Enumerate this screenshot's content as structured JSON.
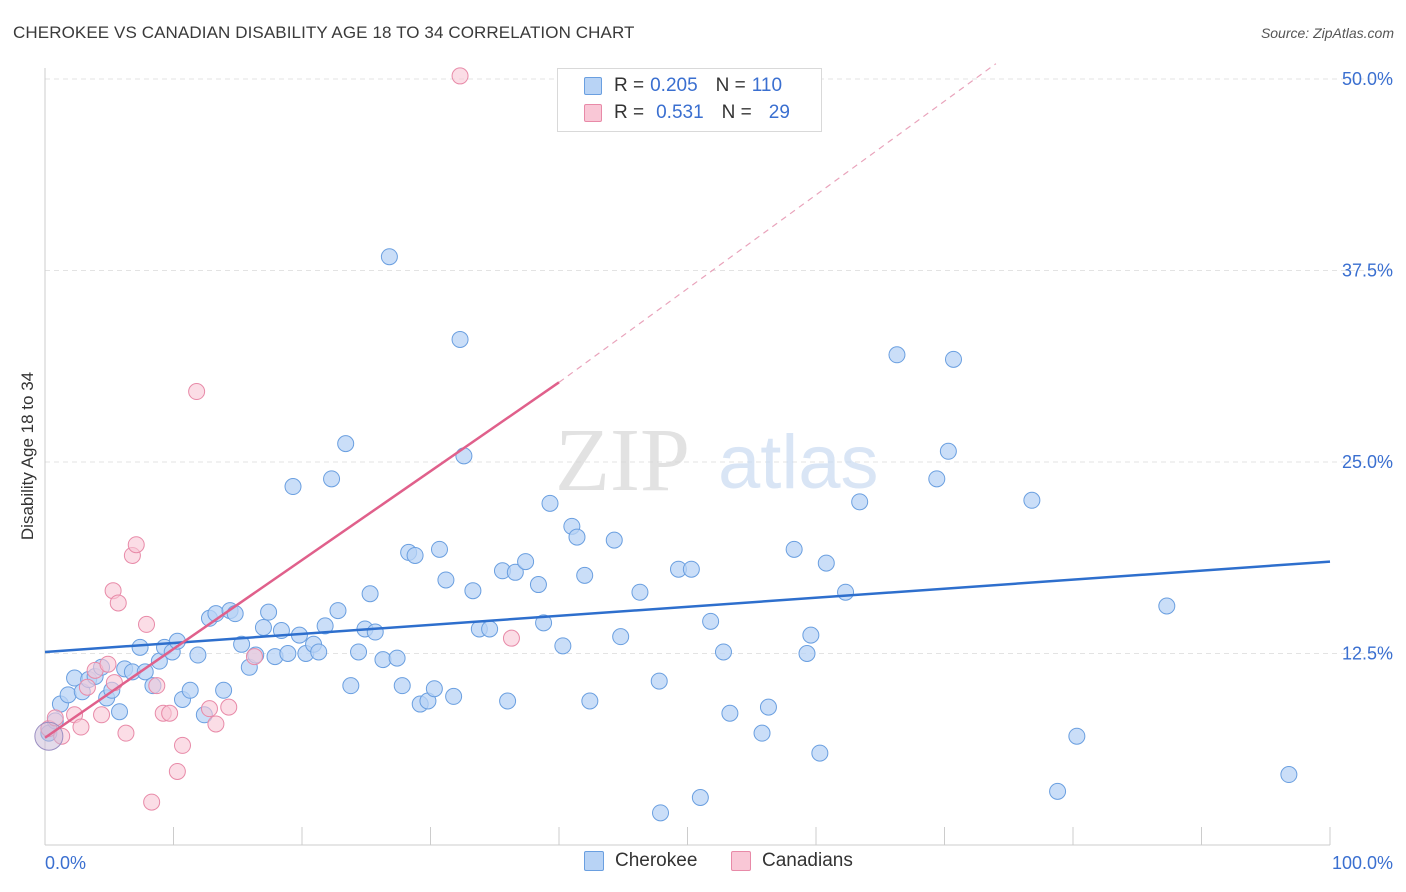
{
  "header": {
    "title": "CHEROKEE VS CANADIAN DISABILITY AGE 18 TO 34 CORRELATION CHART",
    "source": "Source: ZipAtlas.com"
  },
  "legend": {
    "rows": [
      {
        "r_label": "R = ",
        "r_value": "0.205",
        "n_label": "N = ",
        "n_value": "110"
      },
      {
        "r_label": "R = ",
        "r_value": "0.531",
        "n_label": "N = ",
        "n_value": "29"
      }
    ]
  },
  "colors": {
    "cherokee_fill": "#b8d3f5",
    "cherokee_stroke": "#6a9fe0",
    "cherokee_line": "#2e6fcd",
    "canadians_fill": "#f9c7d6",
    "canadians_stroke": "#e88aa8",
    "canadians_line": "#e0608b",
    "axis_text": "#3a6fd0",
    "grid": "#e3e3e3"
  },
  "watermark": {
    "part1": "ZIP",
    "part2": "atlas"
  },
  "chart_data": {
    "type": "scatter",
    "title": "CHEROKEE VS CANADIAN DISABILITY AGE 18 TO 34 CORRELATION CHART",
    "xlabel": "",
    "ylabel": "Disability Age 18 to 34",
    "xlim": [
      0,
      100
    ],
    "ylim": [
      0,
      50
    ],
    "x_tick_labels": [
      {
        "value": 0,
        "label": "0.0%"
      },
      {
        "value": 100,
        "label": "100.0%"
      }
    ],
    "y_tick_labels": [
      {
        "value": 12.5,
        "label": "12.5%"
      },
      {
        "value": 25,
        "label": "25.0%"
      },
      {
        "value": 37.5,
        "label": "37.5%"
      },
      {
        "value": 50,
        "label": "50.0%"
      }
    ],
    "legend_position": "top-center",
    "series": [
      {
        "name": "Cherokee",
        "R": 0.205,
        "N": 110,
        "trend": {
          "x0": 0,
          "y0": 12.6,
          "x1": 100,
          "y1": 18.5
        },
        "points": [
          [
            0.3,
            7.3
          ],
          [
            0.8,
            8.1
          ],
          [
            1.2,
            9.2
          ],
          [
            1.8,
            9.8
          ],
          [
            2.3,
            10.9
          ],
          [
            2.9,
            10.0
          ],
          [
            3.4,
            10.8
          ],
          [
            3.9,
            11.0
          ],
          [
            4.4,
            11.6
          ],
          [
            4.8,
            9.6
          ],
          [
            5.2,
            10.1
          ],
          [
            5.8,
            8.7
          ],
          [
            6.2,
            11.5
          ],
          [
            6.8,
            11.3
          ],
          [
            7.4,
            12.9
          ],
          [
            7.8,
            11.3
          ],
          [
            8.4,
            10.4
          ],
          [
            8.9,
            12.0
          ],
          [
            9.3,
            12.9
          ],
          [
            9.9,
            12.6
          ],
          [
            10.3,
            13.3
          ],
          [
            10.7,
            9.5
          ],
          [
            11.3,
            10.1
          ],
          [
            11.9,
            12.4
          ],
          [
            12.4,
            8.5
          ],
          [
            12.8,
            14.8
          ],
          [
            13.3,
            15.1
          ],
          [
            13.9,
            10.1
          ],
          [
            14.4,
            15.3
          ],
          [
            14.8,
            15.1
          ],
          [
            15.3,
            13.1
          ],
          [
            15.9,
            11.6
          ],
          [
            16.4,
            12.4
          ],
          [
            17.0,
            14.2
          ],
          [
            17.4,
            15.2
          ],
          [
            17.9,
            12.3
          ],
          [
            18.4,
            14.0
          ],
          [
            18.9,
            12.5
          ],
          [
            19.3,
            23.4
          ],
          [
            19.8,
            13.7
          ],
          [
            20.3,
            12.5
          ],
          [
            20.9,
            13.1
          ],
          [
            21.3,
            12.6
          ],
          [
            21.8,
            14.3
          ],
          [
            22.3,
            23.9
          ],
          [
            22.8,
            15.3
          ],
          [
            23.4,
            26.2
          ],
          [
            23.8,
            10.4
          ],
          [
            24.4,
            12.6
          ],
          [
            24.9,
            14.1
          ],
          [
            25.3,
            16.4
          ],
          [
            25.7,
            13.9
          ],
          [
            26.3,
            12.1
          ],
          [
            26.8,
            38.4
          ],
          [
            27.4,
            12.2
          ],
          [
            27.8,
            10.4
          ],
          [
            28.3,
            19.1
          ],
          [
            28.8,
            18.9
          ],
          [
            29.2,
            9.2
          ],
          [
            29.8,
            9.4
          ],
          [
            30.3,
            10.2
          ],
          [
            30.7,
            19.3
          ],
          [
            31.2,
            17.3
          ],
          [
            31.8,
            9.7
          ],
          [
            32.3,
            33.0
          ],
          [
            32.6,
            25.4
          ],
          [
            33.3,
            16.6
          ],
          [
            33.8,
            14.1
          ],
          [
            34.6,
            14.1
          ],
          [
            35.6,
            17.9
          ],
          [
            36.0,
            9.4
          ],
          [
            36.6,
            17.8
          ],
          [
            37.4,
            18.5
          ],
          [
            38.4,
            17.0
          ],
          [
            38.8,
            14.5
          ],
          [
            39.3,
            22.3
          ],
          [
            40.3,
            13.0
          ],
          [
            41.0,
            20.8
          ],
          [
            41.4,
            20.1
          ],
          [
            42.0,
            17.6
          ],
          [
            42.4,
            9.4
          ],
          [
            44.3,
            19.9
          ],
          [
            44.8,
            13.6
          ],
          [
            46.3,
            16.5
          ],
          [
            47.8,
            10.7
          ],
          [
            47.9,
            2.1
          ],
          [
            49.3,
            18.0
          ],
          [
            50.3,
            18.0
          ],
          [
            51.0,
            3.1
          ],
          [
            51.8,
            14.6
          ],
          [
            52.8,
            12.6
          ],
          [
            53.3,
            8.6
          ],
          [
            55.8,
            7.3
          ],
          [
            56.3,
            9.0
          ],
          [
            58.3,
            19.3
          ],
          [
            59.3,
            12.5
          ],
          [
            59.6,
            13.7
          ],
          [
            60.3,
            6.0
          ],
          [
            60.8,
            18.4
          ],
          [
            62.3,
            16.5
          ],
          [
            63.4,
            22.4
          ],
          [
            66.3,
            32.0
          ],
          [
            69.4,
            23.9
          ],
          [
            70.3,
            25.7
          ],
          [
            70.7,
            31.7
          ],
          [
            76.8,
            22.5
          ],
          [
            78.8,
            3.5
          ],
          [
            80.3,
            7.1
          ],
          [
            87.3,
            15.6
          ],
          [
            96.8,
            4.6
          ]
        ]
      },
      {
        "name": "Canadians",
        "R": 0.531,
        "N": 29,
        "trend": {
          "x0": 0,
          "y0": 7.0,
          "x1": 40,
          "y1": 30.2,
          "dash_x1": 74,
          "dash_y1": 51.0
        },
        "points": [
          [
            0.3,
            7.6
          ],
          [
            0.8,
            8.3
          ],
          [
            1.3,
            7.1
          ],
          [
            2.3,
            8.5
          ],
          [
            2.8,
            7.7
          ],
          [
            3.3,
            10.3
          ],
          [
            3.9,
            11.4
          ],
          [
            4.4,
            8.5
          ],
          [
            4.9,
            11.8
          ],
          [
            5.4,
            10.6
          ],
          [
            5.3,
            16.6
          ],
          [
            5.7,
            15.8
          ],
          [
            6.3,
            7.3
          ],
          [
            6.8,
            18.9
          ],
          [
            7.1,
            19.6
          ],
          [
            7.9,
            14.4
          ],
          [
            8.3,
            2.8
          ],
          [
            8.7,
            10.4
          ],
          [
            9.2,
            8.6
          ],
          [
            9.7,
            8.6
          ],
          [
            10.3,
            4.8
          ],
          [
            10.7,
            6.5
          ],
          [
            11.8,
            29.6
          ],
          [
            12.8,
            8.9
          ],
          [
            13.3,
            7.9
          ],
          [
            14.3,
            9.0
          ],
          [
            16.3,
            12.3
          ],
          [
            32.3,
            50.2
          ],
          [
            36.3,
            13.5
          ]
        ]
      }
    ]
  },
  "bottom_legend": {
    "items": [
      "Cherokee",
      "Canadians"
    ]
  }
}
